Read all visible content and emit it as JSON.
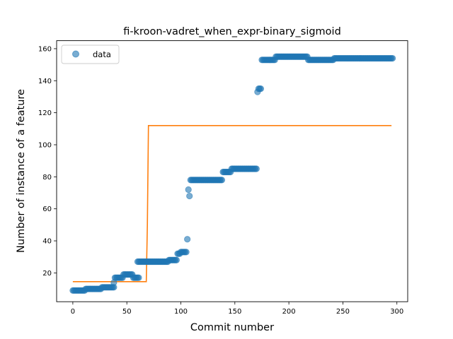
{
  "chart_data": {
    "type": "scatter",
    "title": "fi-kroon-vadret_when_expr-binary_sigmoid",
    "xlabel": "Commit number",
    "ylabel": "Number of instance of a feature",
    "xlim": [
      -15,
      310
    ],
    "ylim": [
      2,
      165
    ],
    "xticks": [
      0,
      50,
      100,
      150,
      200,
      250,
      300
    ],
    "yticks": [
      20,
      40,
      60,
      80,
      100,
      120,
      140,
      160
    ],
    "legend": {
      "placement": "top-left",
      "entries": [
        "data"
      ]
    },
    "colors": {
      "data": "#1f77b4",
      "fit": "#ff7f0e"
    },
    "series": [
      {
        "name": "data",
        "kind": "scatter",
        "segments": [
          {
            "from": 0,
            "to": 11,
            "value": 9
          },
          {
            "from": 12,
            "to": 26,
            "value": 10
          },
          {
            "from": 27,
            "to": 38,
            "value": 11
          },
          {
            "from": 38,
            "to": 38,
            "value": 14
          },
          {
            "from": 39,
            "to": 46,
            "value": 17
          },
          {
            "from": 47,
            "to": 55,
            "value": 19
          },
          {
            "from": 56,
            "to": 61,
            "value": 17
          },
          {
            "from": 60,
            "to": 88,
            "value": 27
          },
          {
            "from": 89,
            "to": 96,
            "value": 28
          },
          {
            "from": 97,
            "to": 99,
            "value": 32
          },
          {
            "from": 100,
            "to": 105,
            "value": 33
          },
          {
            "from": 106,
            "to": 106,
            "value": 41
          },
          {
            "from": 107,
            "to": 107,
            "value": 72
          },
          {
            "from": 108,
            "to": 108,
            "value": 68
          },
          {
            "from": 109,
            "to": 138,
            "value": 78
          },
          {
            "from": 139,
            "to": 146,
            "value": 83
          },
          {
            "from": 147,
            "to": 170,
            "value": 85
          },
          {
            "from": 171,
            "to": 171,
            "value": 133
          },
          {
            "from": 172,
            "to": 174,
            "value": 135
          },
          {
            "from": 175,
            "to": 187,
            "value": 153
          },
          {
            "from": 188,
            "to": 217,
            "value": 155
          },
          {
            "from": 218,
            "to": 241,
            "value": 153
          },
          {
            "from": 242,
            "to": 296,
            "value": 154
          }
        ]
      },
      {
        "name": "",
        "kind": "line",
        "x": [
          0,
          68,
          69,
          70,
          295
        ],
        "y": [
          14.5,
          14.5,
          50,
          112,
          112
        ]
      }
    ]
  }
}
